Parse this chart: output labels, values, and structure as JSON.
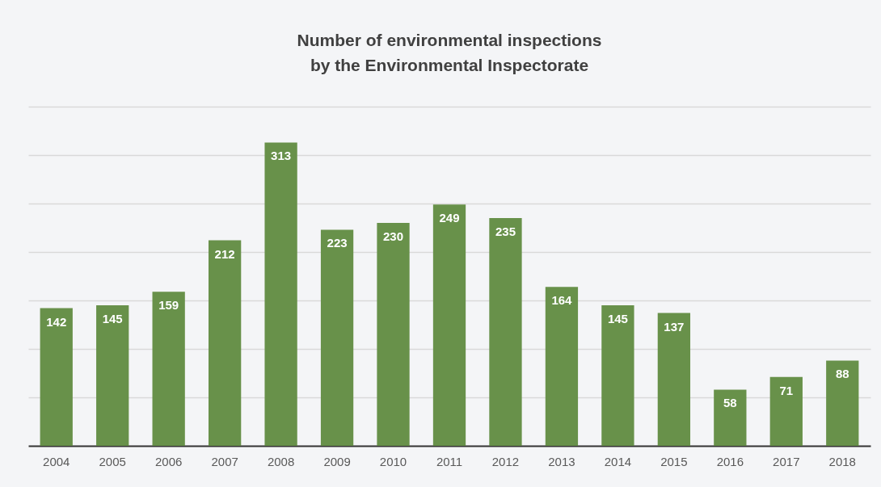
{
  "chart_data": {
    "type": "bar",
    "title": "Number of environmental inspections\nby the Environmental Inspectorate",
    "categories": [
      "2004",
      "2005",
      "2006",
      "2007",
      "2008",
      "2009",
      "2010",
      "2011",
      "2012",
      "2013",
      "2014",
      "2015",
      "2016",
      "2017",
      "2018"
    ],
    "values": [
      142,
      145,
      159,
      212,
      313,
      223,
      230,
      249,
      235,
      164,
      145,
      137,
      58,
      71,
      88
    ],
    "color": "#68914a",
    "ylim": [
      0,
      350
    ],
    "yticks": [
      {
        "value": 50,
        "label": null
      },
      {
        "value": 100,
        "label": null
      },
      {
        "value": 150,
        "label": null
      },
      {
        "value": 200,
        "label": null
      },
      {
        "value": 250,
        "label": null
      },
      {
        "value": 300,
        "label": null
      },
      {
        "value": 350,
        "label": null
      }
    ],
    "grid": "y",
    "tick_labels": "x",
    "data_labels": true
  }
}
